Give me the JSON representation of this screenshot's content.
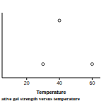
{
  "chart_data": {
    "type": "scatter",
    "title": "ative gel strength versus temperature",
    "x_label": "Temperature",
    "x": [
      30,
      40,
      60
    ],
    "values": [
      21,
      88,
      21
    ],
    "xlim": [
      5,
      65
    ],
    "xticks": [
      20,
      40,
      60
    ],
    "ylim": [
      0,
      100
    ],
    "tick_labels": "x",
    "color": "#000000",
    "marker": "open_circle"
  }
}
